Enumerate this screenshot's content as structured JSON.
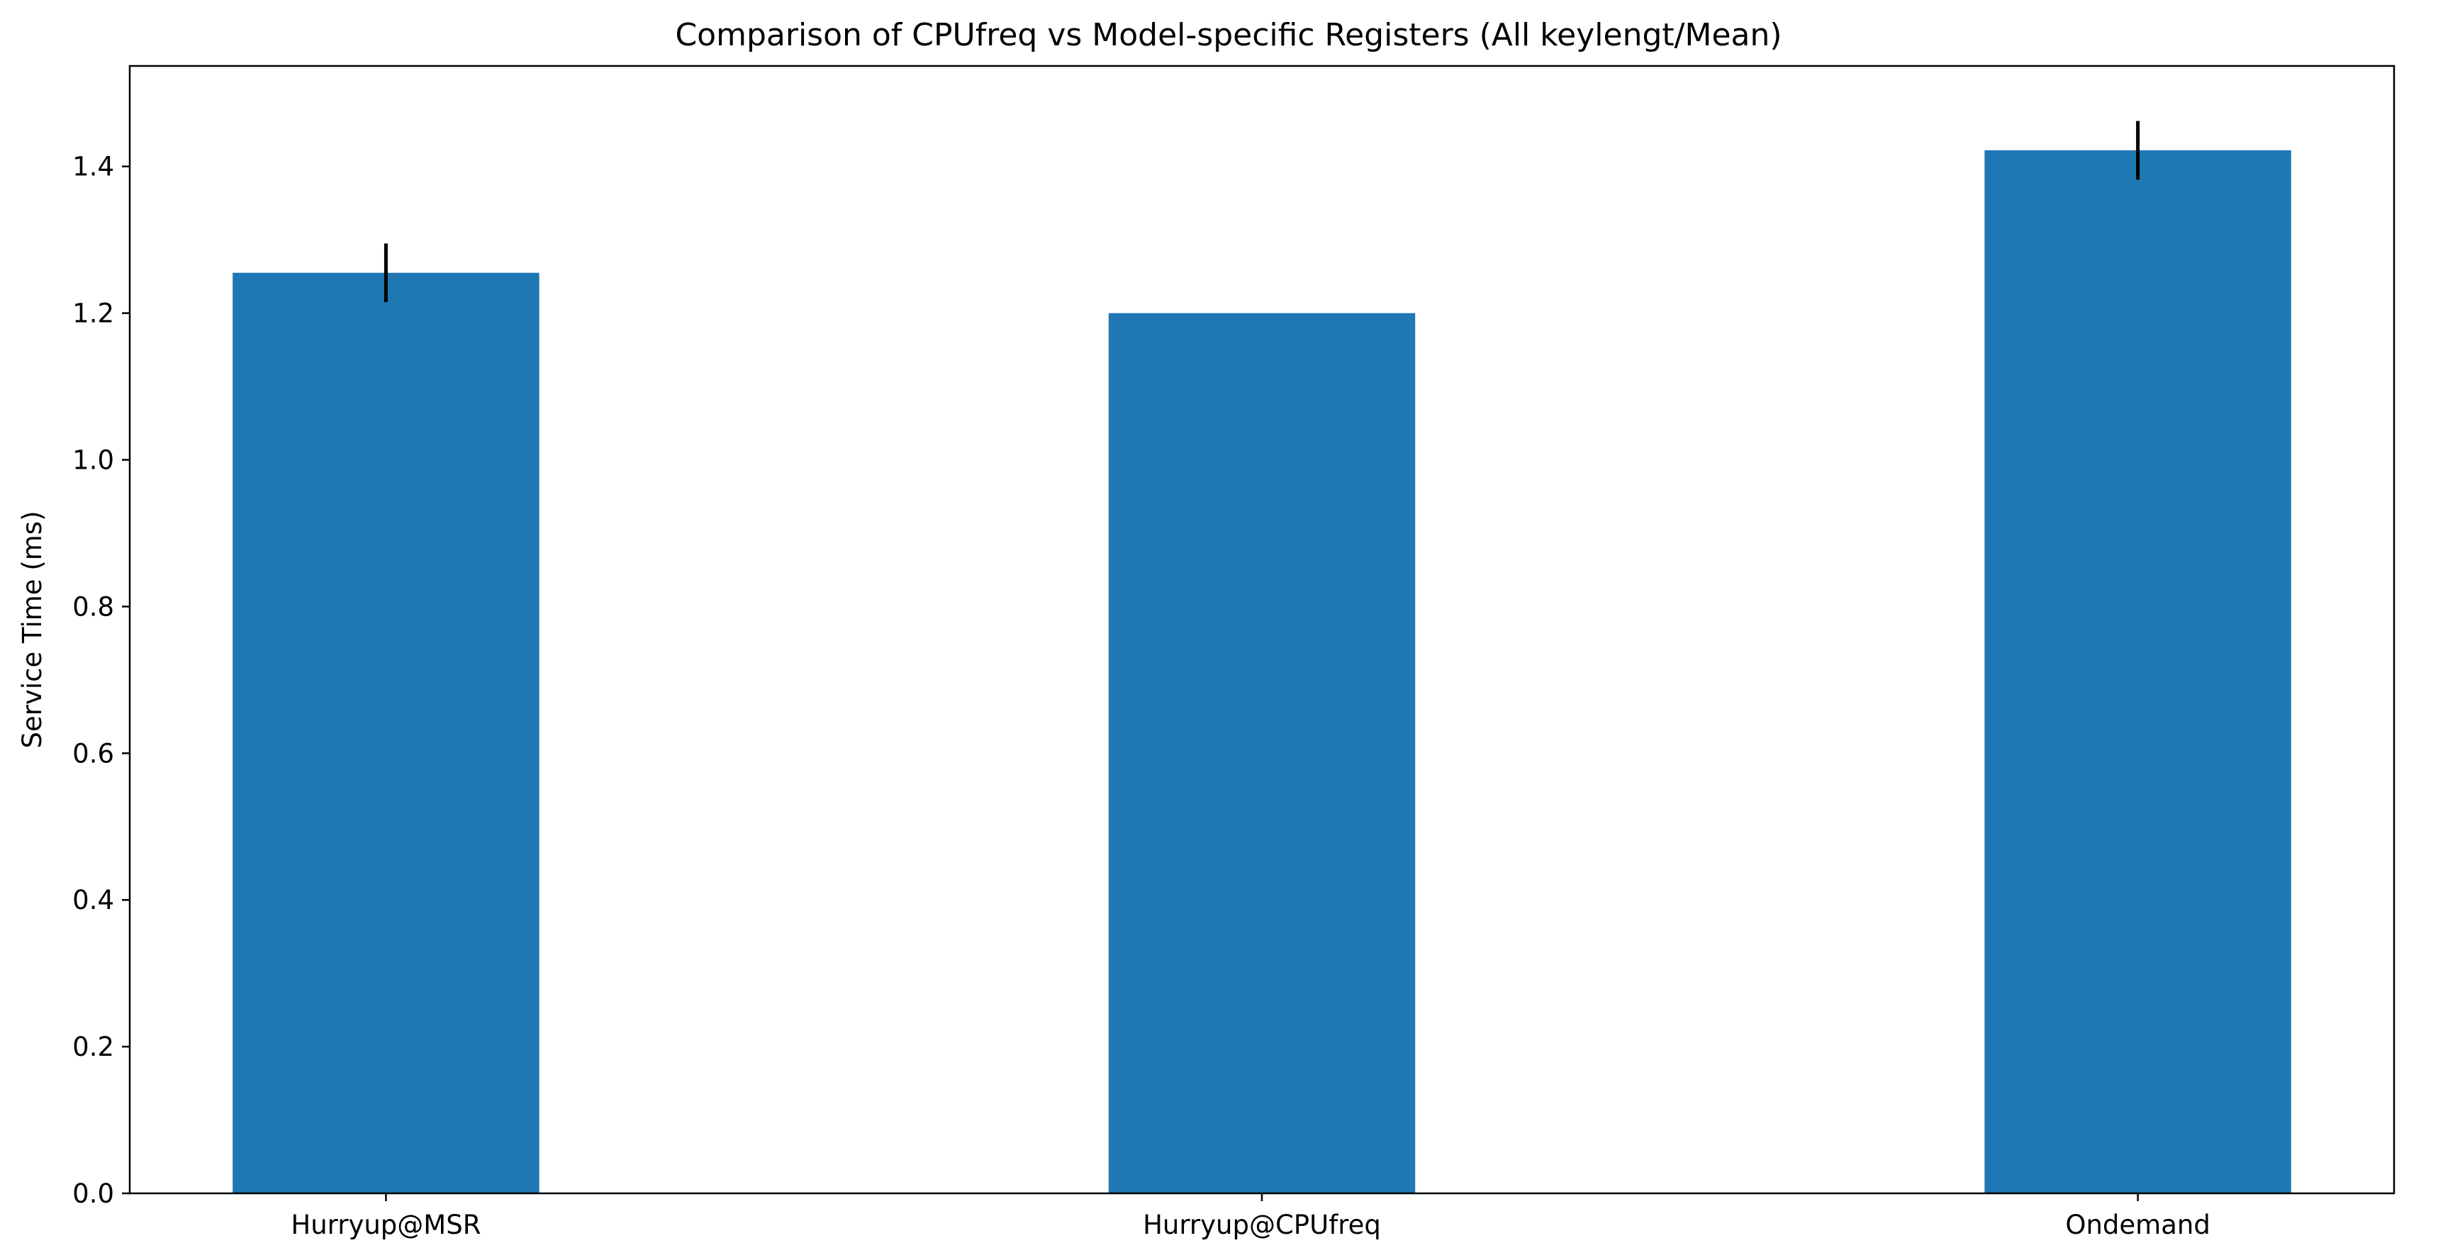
{
  "chart_data": {
    "type": "bar",
    "title": "Comparison of CPUfreq vs Model-specific Registers (All keylengt/Mean)",
    "xlabel": "",
    "ylabel": "Service Time (ms)",
    "categories": [
      "Hurryup@MSR",
      "Hurryup@CPUfreq",
      "Ondemand"
    ],
    "values": [
      1.255,
      1.2,
      1.422
    ],
    "errors": [
      0.04,
      0.0,
      0.04
    ],
    "ylim": [
      0,
      1.537
    ],
    "yticks": [
      "0.0",
      "0.2",
      "0.4",
      "0.6",
      "0.8",
      "1.0",
      "1.2",
      "1.4"
    ],
    "grid": false,
    "bar_color": "#1f77b4",
    "error_color": "#000000"
  }
}
